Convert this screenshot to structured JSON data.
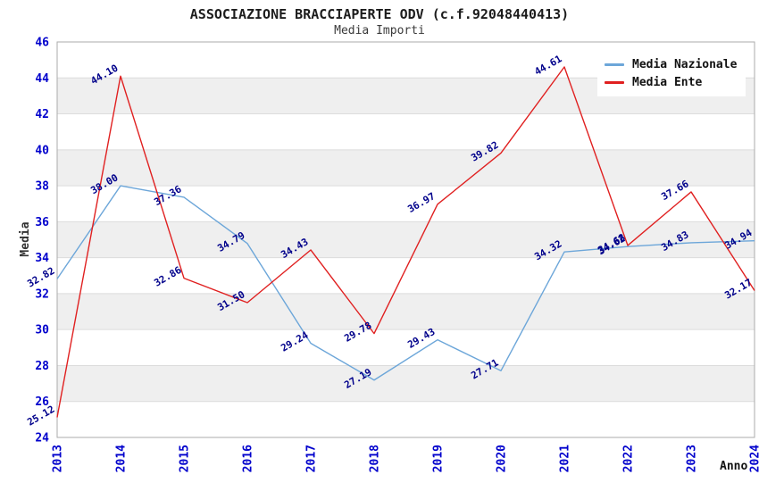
{
  "chart_data": {
    "type": "line",
    "title": "ASSOCIAZIONE BRACCIAPERTE ODV (c.f.92048440413)",
    "subtitle": "Media Importi",
    "xlabel": "Anno",
    "ylabel": "Media",
    "categories": [
      "2013",
      "2014",
      "2015",
      "2016",
      "2017",
      "2018",
      "2019",
      "2020",
      "2021",
      "2022",
      "2023",
      "2024"
    ],
    "series": [
      {
        "name": "Media Nazionale",
        "color": "#6CA6D9",
        "values": [
          32.82,
          38.0,
          37.36,
          34.79,
          29.24,
          27.19,
          29.43,
          27.71,
          34.32,
          34.62,
          34.83,
          34.94
        ]
      },
      {
        "name": "Media Ente",
        "color": "#E02020",
        "values": [
          25.12,
          44.1,
          32.86,
          31.5,
          34.43,
          29.78,
          36.97,
          39.82,
          44.61,
          34.68,
          37.66,
          32.17
        ]
      }
    ],
    "ylim": [
      24,
      46
    ],
    "ytick_step": 2,
    "grid": true,
    "legend_position": "top-right",
    "data_labels": true,
    "data_label_format": "0.00",
    "data_label_rotation_deg": -30,
    "x_tick_rotation_deg": -90
  },
  "colors": {
    "tick": "#0000CC",
    "data_label": "#00008B",
    "band": "#EFEFEF",
    "grid": "#DCDCDC",
    "border": "#ABABAB",
    "background": "#FFFFFF"
  }
}
